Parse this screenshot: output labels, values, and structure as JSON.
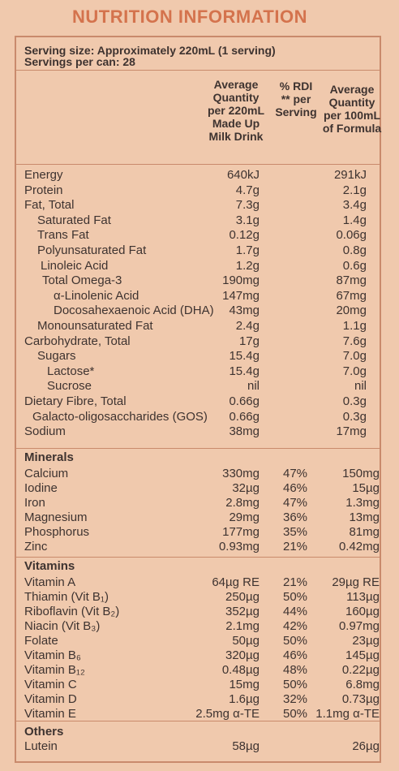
{
  "title": "NUTRITION INFORMATION",
  "serving_size": "Serving size: Approximately 220mL (1 serving)",
  "servings_per_can": "Servings per can: 28",
  "headers": {
    "col1": [
      "Average",
      "Quantity",
      "per 220mL",
      "Made Up",
      "Milk Drink"
    ],
    "col2": [
      "% RDI",
      "** per",
      "Serving"
    ],
    "col3": [
      "Average",
      "Quantity",
      "per 100mL",
      "of Formula"
    ]
  },
  "nutrients": [
    {
      "name": "Energy",
      "q220": "640kJ",
      "q100": "291kJ"
    },
    {
      "name": "Protein",
      "q220": "4.7g",
      "q100": "2.1g"
    },
    {
      "name": "Fat, Total",
      "q220": "7.3g",
      "q100": "3.4g"
    },
    {
      "name": "Saturated Fat",
      "q220": "3.1g",
      "q100": "1.4g"
    },
    {
      "name": "Trans Fat",
      "q220": "0.12g",
      "q100": "0.06g"
    },
    {
      "name": "Polyunsaturated Fat",
      "q220": "1.7g",
      "q100": "0.8g"
    },
    {
      "name": "Linoleic Acid",
      "q220": "1.2g",
      "q100": "0.6g"
    },
    {
      "name": "Total Omega-3",
      "q220": "190mg",
      "q100": "87mg"
    },
    {
      "name": "α-Linolenic Acid",
      "q220": "147mg",
      "q100": "67mg"
    },
    {
      "name": "Docosahexaenoic Acid (DHA)",
      "q220": "43mg",
      "q100": "20mg"
    },
    {
      "name": "Monounsaturated Fat",
      "q220": "2.4g",
      "q100": "1.1g"
    },
    {
      "name": "Carbohydrate, Total",
      "q220": "17g",
      "q100": "7.6g"
    },
    {
      "name": "Sugars",
      "q220": "15.4g",
      "q100": "7.0g"
    },
    {
      "name": "Lactose*",
      "q220": "15.4g",
      "q100": "7.0g"
    },
    {
      "name": "Sucrose",
      "q220": "nil",
      "q100": "nil"
    },
    {
      "name": "Dietary Fibre, Total",
      "q220": "0.66g",
      "q100": "0.3g"
    },
    {
      "name": "Galacto-oligosaccharides (GOS)",
      "q220": "0.66g",
      "q100": "0.3g"
    },
    {
      "name": "Sodium",
      "q220": "38mg",
      "q100": "17mg"
    }
  ],
  "minerals": {
    "heading": "Minerals",
    "rows": [
      {
        "name": "Calcium",
        "q220": "330mg",
        "rdi": "47%",
        "q100": "150mg"
      },
      {
        "name": "Iodine",
        "q220": "32µg",
        "rdi": "46%",
        "q100": "15µg"
      },
      {
        "name": "Iron",
        "q220": "2.8mg",
        "rdi": "47%",
        "q100": "1.3mg"
      },
      {
        "name": "Magnesium",
        "q220": "29mg",
        "rdi": "36%",
        "q100": "13mg"
      },
      {
        "name": "Phosphorus",
        "q220": "177mg",
        "rdi": "35%",
        "q100": "81mg"
      },
      {
        "name": "Zinc",
        "q220": "0.93mg",
        "rdi": "21%",
        "q100": "0.42mg"
      }
    ]
  },
  "vitamins": {
    "heading": "Vitamins",
    "rows": [
      {
        "name": "Vitamin A",
        "q220": "64µg RE",
        "rdi": "21%",
        "q100": "29µg RE"
      },
      {
        "name": "Thiamin (Vit B₁)",
        "q220": "250µg",
        "rdi": "50%",
        "q100": "113µg"
      },
      {
        "name": "Riboflavin (Vit B₂)",
        "q220": "352µg",
        "rdi": "44%",
        "q100": "160µg"
      },
      {
        "name": "Niacin (Vit B₃)",
        "q220": "2.1mg",
        "rdi": "42%",
        "q100": "0.97mg"
      },
      {
        "name": "Folate",
        "q220": "50µg",
        "rdi": "50%",
        "q100": "23µg"
      },
      {
        "name": "Vitamin B₆",
        "q220": "320µg",
        "rdi": "46%",
        "q100": "145µg"
      },
      {
        "name": "Vitamin B₁₂",
        "q220": "0.48µg",
        "rdi": "48%",
        "q100": "0.22µg"
      },
      {
        "name": "Vitamin C",
        "q220": "15mg",
        "rdi": "50%",
        "q100": "6.8mg"
      },
      {
        "name": "Vitamin D",
        "q220": "1.6µg",
        "rdi": "32%",
        "q100": "0.73µg"
      },
      {
        "name": "Vitamin E",
        "q220": "2.5mg α-TE",
        "rdi": "50%",
        "q100": "1.1mg α-TE"
      }
    ]
  },
  "others": {
    "heading": "Others",
    "rows": [
      {
        "name": "Lutein",
        "q220": "58µg",
        "q100": "26µg"
      }
    ]
  },
  "colors": {
    "accent": "#d4734d",
    "background": "#f0c9ad",
    "border": "#c98a6c",
    "text": "#3e3330"
  }
}
